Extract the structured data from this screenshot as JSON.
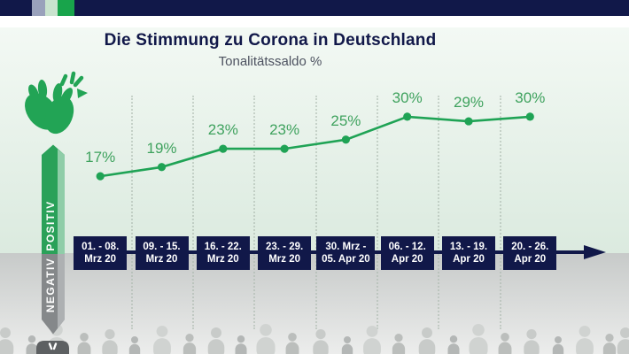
{
  "header": {
    "title": "Die Stimmung zu Corona in Deutschland",
    "subtitle": "Tonalitätssaldo %"
  },
  "axis": {
    "positive_label": "POSITIV",
    "negative_label": "NEGATIV"
  },
  "icons": {
    "top": "clapping-hands-icon",
    "bottom": "thumbs-down-icon"
  },
  "chart_data": {
    "type": "line",
    "title": "Die Stimmung zu Corona in Deutschland",
    "subtitle": "Tonalitätssaldo %",
    "unit": "%",
    "categories": [
      {
        "line1": "01. - 08.",
        "line2": "Mrz 20"
      },
      {
        "line1": "09. - 15.",
        "line2": "Mrz 20"
      },
      {
        "line1": "16. - 22.",
        "line2": "Mrz 20"
      },
      {
        "line1": "23. - 29.",
        "line2": "Mrz 20"
      },
      {
        "line1": "30. Mrz -",
        "line2": "05. Apr 20"
      },
      {
        "line1": "06. - 12.",
        "line2": "Apr 20"
      },
      {
        "line1": "13. - 19.",
        "line2": "Apr 20"
      },
      {
        "line1": "20. - 26.",
        "line2": "Apr 20"
      }
    ],
    "values": [
      17,
      19,
      23,
      23,
      25,
      30,
      29,
      30
    ],
    "labels": [
      "17%",
      "19%",
      "23%",
      "23%",
      "25%",
      "30%",
      "29%",
      "30%"
    ],
    "y_axis_words": {
      "up": "POSITIV",
      "down": "NEGATIV"
    },
    "ylim": [
      0,
      35
    ],
    "grid": "vertical-dotted"
  },
  "theme": {
    "navy": "#111849",
    "line_green": "#1fa355",
    "label_green": "#3fa25e",
    "ribbon_green": "#2aa159",
    "ribbon_green_light": "#8fcda8",
    "ribbon_gray": "#85888a",
    "ribbon_gray_light": "#adb0b2",
    "bg_green_top": "#f3f9f4",
    "bg_green_bottom": "#dbeadf",
    "bg_gray_top": "#c7cac9",
    "bg_gray_bottom": "#ecedec",
    "topbar_segments": [
      "#99a1bb",
      "#c9e3ce",
      "#18a44b"
    ]
  }
}
